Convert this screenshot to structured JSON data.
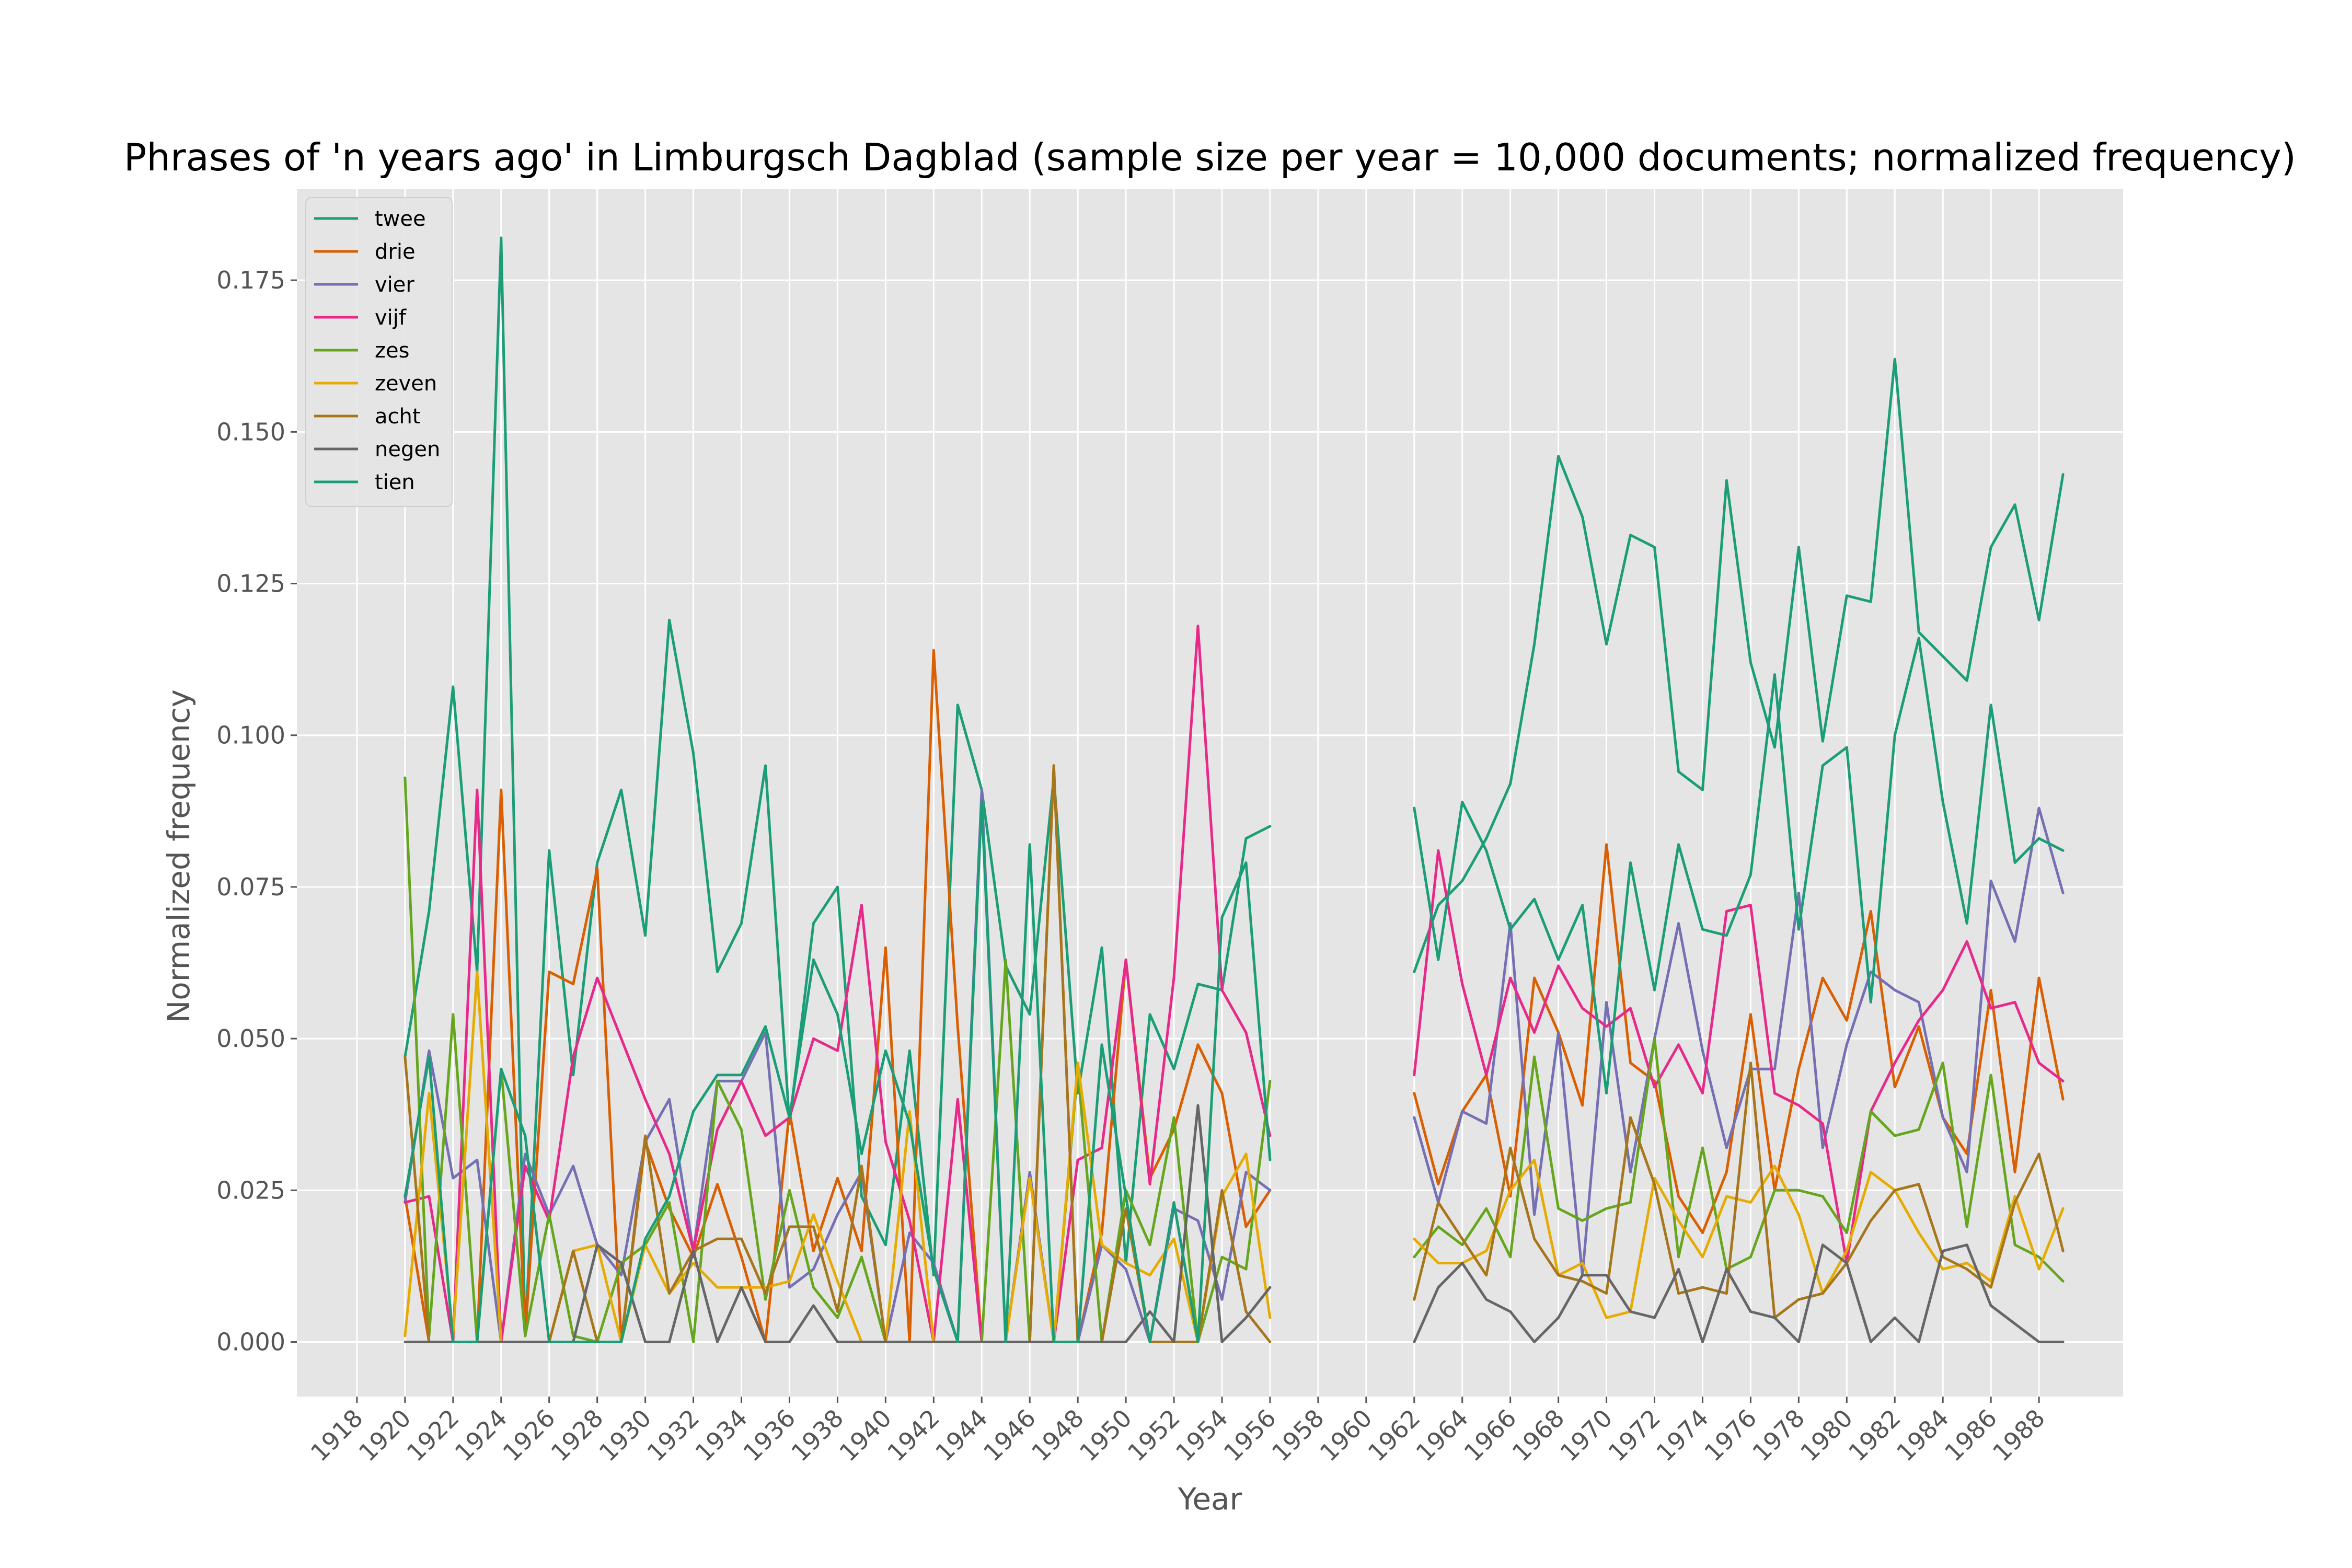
{
  "chart_data": {
    "type": "line",
    "title": "Phrases of 'n years ago' in Limburgsch Dagblad (sample size per year = 10,000 documents; normalized frequency)",
    "xlabel": "Year",
    "ylabel": "Normalized frequency",
    "xlim": [
      1915.5,
      1991.5
    ],
    "ylim": [
      -0.009,
      0.19
    ],
    "grid": true,
    "legend_position": "top-left",
    "x_ticks": [
      "1918",
      "1920",
      "1922",
      "1924",
      "1926",
      "1928",
      "1930",
      "1932",
      "1934",
      "1936",
      "1938",
      "1940",
      "1942",
      "1944",
      "1946",
      "1948",
      "1950",
      "1952",
      "1954",
      "1956",
      "1958",
      "1960",
      "1962",
      "1964",
      "1966",
      "1968",
      "1970",
      "1972",
      "1974",
      "1976",
      "1978",
      "1980",
      "1982",
      "1984",
      "1986",
      "1988"
    ],
    "y_ticks": [
      "0.000",
      "0.025",
      "0.050",
      "0.075",
      "0.100",
      "0.125",
      "0.150",
      "0.175"
    ],
    "years_a": [
      1920,
      1921,
      1922,
      1923,
      1924,
      1925,
      1926,
      1927,
      1928,
      1929,
      1930,
      1931,
      1932,
      1933,
      1934,
      1935,
      1936,
      1937,
      1938,
      1939,
      1940,
      1941,
      1942,
      1943,
      1944,
      1945,
      1946,
      1947,
      1948,
      1949,
      1950,
      1951,
      1952,
      1953,
      1954,
      1955,
      1956
    ],
    "years_b": [
      1962,
      1963,
      1964,
      1965,
      1966,
      1967,
      1968,
      1969,
      1970,
      1971,
      1972,
      1973,
      1974,
      1975,
      1976,
      1977,
      1978,
      1979,
      1980,
      1981,
      1982,
      1983,
      1984,
      1985,
      1986,
      1987,
      1988,
      1989
    ],
    "series": [
      {
        "name": "twee",
        "color": "#1b9e77",
        "a": [
          0.047,
          0.071,
          0.108,
          0.061,
          0.182,
          0.001,
          0.081,
          0.044,
          0.079,
          0.091,
          0.067,
          0.119,
          0.097,
          0.061,
          0.069,
          0.095,
          0.036,
          0.069,
          0.075,
          0.024,
          0.016,
          0.048,
          0.011,
          0.105,
          0.091,
          0.062,
          0.054,
          0.093,
          0.041,
          0.065,
          0.013,
          0.054,
          0.045,
          0.059,
          0.058,
          0.083,
          0.085
        ],
        "b": [
          0.061,
          0.072,
          0.076,
          0.083,
          0.092,
          0.115,
          0.146,
          0.136,
          0.115,
          0.133,
          0.131,
          0.094,
          0.091,
          0.142,
          0.112,
          0.098,
          0.131,
          0.099,
          0.123,
          0.122,
          0.162,
          0.117,
          0.113,
          0.109,
          0.131,
          0.138,
          0.119,
          0.143
        ]
      },
      {
        "name": "drie",
        "color": "#d95f02",
        "a": [
          0.024,
          0.0,
          0.0,
          0.0,
          0.091,
          0.001,
          0.061,
          0.059,
          0.078,
          0.0,
          0.033,
          0.022,
          0.014,
          0.026,
          0.014,
          0.0,
          0.038,
          0.015,
          0.027,
          0.015,
          0.065,
          0.0,
          0.114,
          0.052,
          0.0,
          0.0,
          0.0,
          0.095,
          0.0,
          0.018,
          0.063,
          0.027,
          0.035,
          0.049,
          0.041,
          0.019,
          0.025
        ],
        "b": [
          0.041,
          0.026,
          0.038,
          0.044,
          0.024,
          0.06,
          0.051,
          0.039,
          0.082,
          0.046,
          0.043,
          0.024,
          0.018,
          0.028,
          0.054,
          0.025,
          0.045,
          0.06,
          0.053,
          0.071,
          0.042,
          0.052,
          0.037,
          0.031,
          0.058,
          0.028,
          0.06,
          0.04
        ]
      },
      {
        "name": "vier",
        "color": "#7570b3",
        "a": [
          0.023,
          0.048,
          0.027,
          0.03,
          0.0,
          0.031,
          0.021,
          0.029,
          0.016,
          0.011,
          0.033,
          0.04,
          0.015,
          0.043,
          0.043,
          0.051,
          0.009,
          0.012,
          0.021,
          0.028,
          0.0,
          0.018,
          0.013,
          0.0,
          0.091,
          0.0,
          0.028,
          0.0,
          0.0,
          0.016,
          0.012,
          0.0,
          0.022,
          0.02,
          0.007,
          0.028,
          0.025
        ],
        "b": [
          0.037,
          0.023,
          0.038,
          0.036,
          0.069,
          0.021,
          0.051,
          0.011,
          0.056,
          0.028,
          0.05,
          0.069,
          0.048,
          0.032,
          0.045,
          0.045,
          0.074,
          0.032,
          0.049,
          0.061,
          0.058,
          0.056,
          0.037,
          0.028,
          0.076,
          0.066,
          0.088,
          0.074
        ]
      },
      {
        "name": "vijf",
        "color": "#e7298a",
        "a": [
          0.023,
          0.024,
          0.0,
          0.091,
          0.0,
          0.029,
          0.02,
          0.047,
          0.06,
          0.05,
          0.04,
          0.031,
          0.015,
          0.035,
          0.043,
          0.034,
          0.037,
          0.05,
          0.048,
          0.072,
          0.033,
          0.02,
          0.0,
          0.04,
          0.0,
          0.0,
          0.0,
          0.0,
          0.03,
          0.032,
          0.063,
          0.026,
          0.06,
          0.118,
          0.058,
          0.051,
          0.034
        ],
        "b": [
          0.044,
          0.081,
          0.059,
          0.044,
          0.06,
          0.051,
          0.062,
          0.055,
          0.052,
          0.055,
          0.042,
          0.049,
          0.041,
          0.071,
          0.072,
          0.041,
          0.039,
          0.036,
          0.013,
          0.038,
          0.046,
          0.053,
          0.058,
          0.066,
          0.055,
          0.056,
          0.046,
          0.043
        ]
      },
      {
        "name": "zes",
        "color": "#66a61e",
        "a": [
          0.093,
          0.001,
          0.054,
          0.0,
          0.045,
          0.001,
          0.021,
          0.001,
          0.0,
          0.013,
          0.016,
          0.023,
          0.0,
          0.043,
          0.035,
          0.007,
          0.025,
          0.009,
          0.004,
          0.014,
          0.0,
          0.0,
          0.0,
          0.0,
          0.0,
          0.063,
          0.0,
          0.0,
          0.045,
          0.0,
          0.025,
          0.016,
          0.037,
          0.0,
          0.014,
          0.012,
          0.043
        ],
        "b": [
          0.014,
          0.019,
          0.016,
          0.022,
          0.014,
          0.047,
          0.022,
          0.02,
          0.022,
          0.023,
          0.05,
          0.014,
          0.032,
          0.012,
          0.014,
          0.025,
          0.025,
          0.024,
          0.018,
          0.038,
          0.034,
          0.035,
          0.046,
          0.019,
          0.044,
          0.016,
          0.014,
          0.01
        ]
      },
      {
        "name": "zeven",
        "color": "#e6ab02",
        "a": [
          0.001,
          0.041,
          0.001,
          0.061,
          0.0,
          0.0,
          0.0,
          0.015,
          0.016,
          0.0,
          0.016,
          0.008,
          0.013,
          0.009,
          0.009,
          0.009,
          0.01,
          0.021,
          0.01,
          0.0,
          0.0,
          0.038,
          0.0,
          0.0,
          0.0,
          0.0,
          0.027,
          0.0,
          0.046,
          0.016,
          0.013,
          0.011,
          0.017,
          0.0,
          0.024,
          0.031,
          0.004
        ],
        "b": [
          0.017,
          0.013,
          0.013,
          0.015,
          0.025,
          0.03,
          0.011,
          0.013,
          0.004,
          0.005,
          0.027,
          0.02,
          0.014,
          0.024,
          0.023,
          0.029,
          0.021,
          0.008,
          0.015,
          0.028,
          0.025,
          0.018,
          0.012,
          0.013,
          0.01,
          0.024,
          0.012,
          0.022
        ]
      },
      {
        "name": "acht",
        "color": "#a6761d",
        "a": [
          0.047,
          0.0,
          0.0,
          0.0,
          0.0,
          0.0,
          0.0,
          0.015,
          0.0,
          0.0,
          0.034,
          0.008,
          0.015,
          0.017,
          0.017,
          0.008,
          0.019,
          0.019,
          0.005,
          0.029,
          0.0,
          0.0,
          0.0,
          0.0,
          0.0,
          0.0,
          0.0,
          0.095,
          0.0,
          0.0,
          0.022,
          0.0,
          0.0,
          0.0,
          0.025,
          0.005,
          0.0
        ],
        "b": [
          0.007,
          0.023,
          0.017,
          0.011,
          0.032,
          0.017,
          0.011,
          0.01,
          0.008,
          0.037,
          0.026,
          0.008,
          0.009,
          0.008,
          0.046,
          0.004,
          0.007,
          0.008,
          0.013,
          0.02,
          0.025,
          0.026,
          0.014,
          0.012,
          0.009,
          0.023,
          0.031,
          0.015
        ]
      },
      {
        "name": "negen",
        "color": "#666666",
        "a": [
          0.0,
          0.0,
          0.0,
          0.0,
          0.0,
          0.0,
          0.0,
          0.0,
          0.016,
          0.013,
          0.0,
          0.0,
          0.015,
          0.0,
          0.009,
          0.0,
          0.0,
          0.006,
          0.0,
          0.0,
          0.0,
          0.0,
          0.0,
          0.0,
          0.0,
          0.0,
          0.0,
          0.0,
          0.0,
          0.0,
          0.0,
          0.005,
          0.0,
          0.039,
          0.0,
          0.004,
          0.009
        ],
        "b": [
          0.0,
          0.009,
          0.013,
          0.007,
          0.005,
          0.0,
          0.004,
          0.011,
          0.011,
          0.005,
          0.004,
          0.012,
          0.0,
          0.012,
          0.005,
          0.004,
          0.0,
          0.016,
          0.013,
          0.0,
          0.004,
          0.0,
          0.015,
          0.016,
          0.006,
          0.003,
          0.0,
          0.0
        ]
      },
      {
        "name": "tien",
        "color": "#1b9e77",
        "a": [
          0.024,
          0.047,
          0.0,
          0.0,
          0.045,
          0.034,
          0.0,
          0.0,
          0.0,
          0.0,
          0.017,
          0.024,
          0.038,
          0.044,
          0.044,
          0.052,
          0.037,
          0.063,
          0.054,
          0.031,
          0.048,
          0.036,
          0.012,
          0.0,
          0.089,
          0.0,
          0.082,
          0.0,
          0.0,
          0.049,
          0.024,
          0.0,
          0.023,
          0.0,
          0.07,
          0.079,
          0.03
        ],
        "b": [
          0.088,
          0.063,
          0.089,
          0.081,
          0.068,
          0.073,
          0.063,
          0.072,
          0.041,
          0.079,
          0.058,
          0.082,
          0.068,
          0.067,
          0.077,
          0.11,
          0.068,
          0.095,
          0.098,
          0.056,
          0.1,
          0.116,
          0.089,
          0.069,
          0.105,
          0.079,
          0.083,
          0.081
        ]
      }
    ]
  }
}
